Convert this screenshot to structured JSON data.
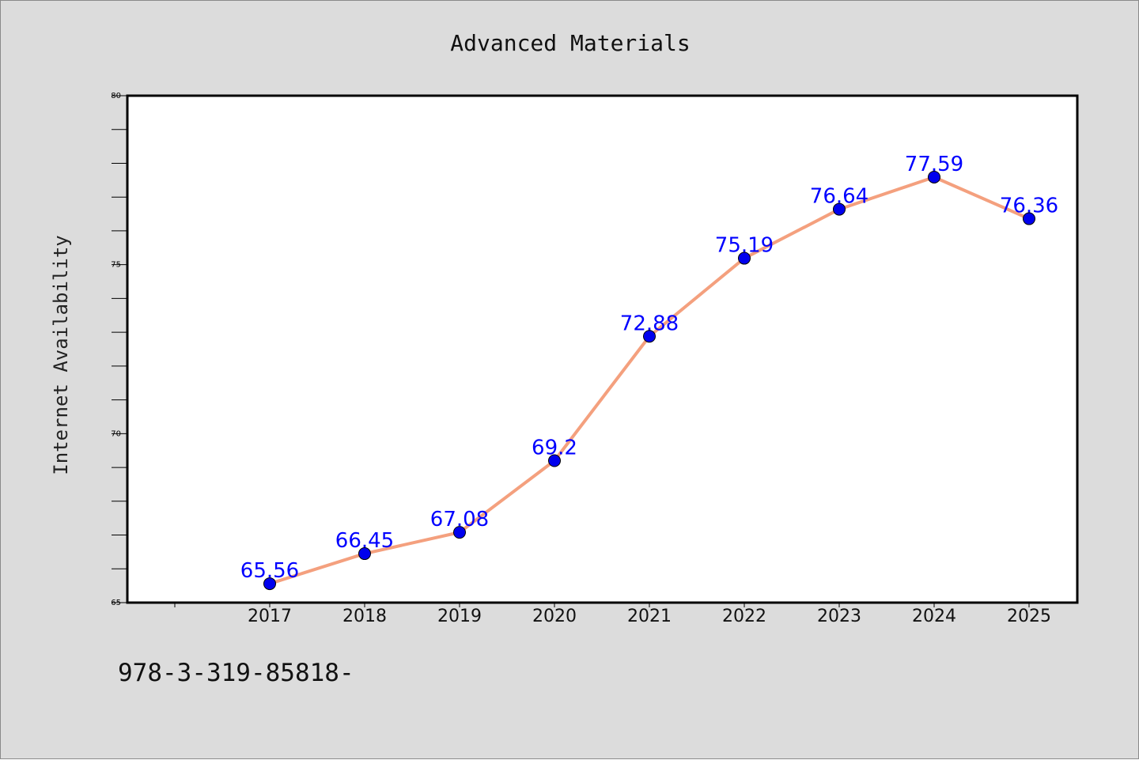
{
  "footnote": "978-3-319-85818-",
  "chart_data": {
    "type": "line",
    "title": "Advanced Materials",
    "xlabel": "",
    "ylabel": "Internet Availability",
    "x": [
      "2017",
      "2018",
      "2019",
      "2020",
      "2021",
      "2022",
      "2023",
      "2024",
      "2025"
    ],
    "series": [
      {
        "values": [
          65.56,
          66.45,
          67.08,
          69.2,
          72.88,
          75.19,
          76.64,
          77.59,
          76.36
        ]
      }
    ],
    "data_labels": [
      "65.56",
      "66.45",
      "67.08",
      "69.2",
      "72.88",
      "75.19",
      "76.64",
      "77.59",
      "76.36"
    ],
    "ylim": [
      65,
      80
    ],
    "yticks": [
      65,
      70,
      75,
      80
    ],
    "ytick_labels": [
      "65",
      "70",
      "75",
      "80"
    ],
    "grid": false,
    "legend": "none",
    "colors": {
      "line": "#f4a07e",
      "marker": "#0000ee",
      "label": "#0000ff",
      "plot_bg": "#ffffff",
      "figure_bg": "#dcdcdc"
    }
  }
}
